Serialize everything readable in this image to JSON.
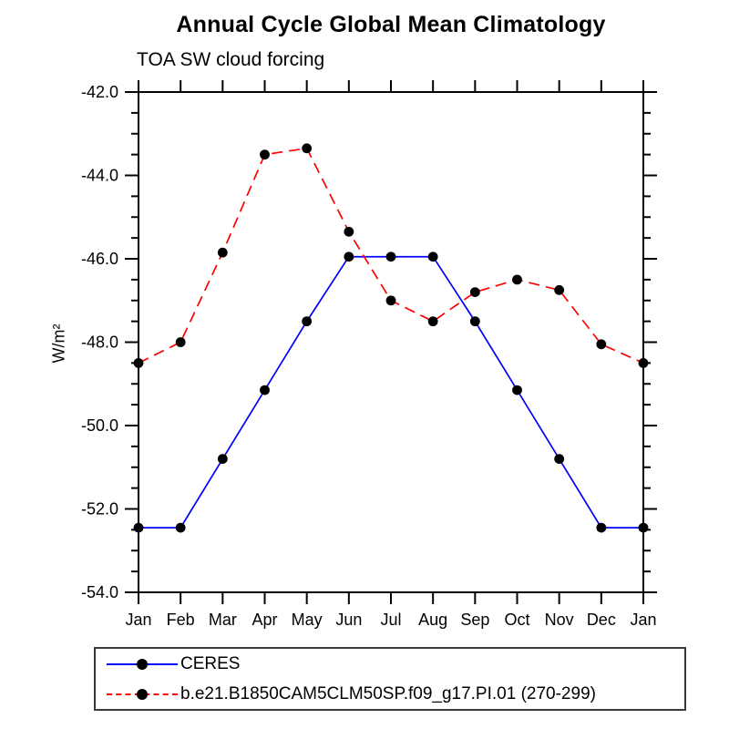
{
  "header": {
    "title": "Annual Cycle Global Mean Climatology",
    "subtitle": "TOA SW cloud forcing"
  },
  "axes": {
    "ylabel": "W/m²",
    "xlabel": ""
  },
  "legend": {
    "position": "bottom-left-box",
    "entries": [
      {
        "label": "CERES",
        "color": "#0000ff",
        "line": "solid",
        "marker": "black-dot"
      },
      {
        "label": "b.e21.B1850CAM5CLM50SP.f09_g17.PI.01 (270-299)",
        "color": "#ff0000",
        "line": "dashed",
        "marker": "black-dot"
      }
    ]
  },
  "chart_data": {
    "type": "line",
    "title": "Annual Cycle Global Mean Climatology",
    "subtitle": "TOA SW cloud forcing",
    "ylabel": "W/m²",
    "xlabel": "",
    "x": [
      "Jan",
      "Feb",
      "Mar",
      "Apr",
      "May",
      "Jun",
      "Jul",
      "Aug",
      "Sep",
      "Oct",
      "Nov",
      "Dec",
      "Jan"
    ],
    "series": [
      {
        "name": "CERES",
        "color": "#0000ff",
        "line": "solid",
        "dash": "",
        "marker": "black-dot",
        "values": [
          -52.45,
          -52.45,
          -50.8,
          -49.15,
          -47.5,
          -45.95,
          -45.95,
          -45.95,
          -47.5,
          -49.15,
          -50.8,
          -52.45,
          -52.45
        ]
      },
      {
        "name": "b.e21.B1850CAM5CLM50SP.f09_g17.PI.01 (270-299)",
        "color": "#ff0000",
        "line": "dashed",
        "dash": "12,7",
        "marker": "black-dot",
        "values": [
          -48.5,
          -48.0,
          -45.85,
          -43.5,
          -43.35,
          -45.35,
          -47.0,
          -47.5,
          -46.8,
          -46.5,
          -46.75,
          -48.05,
          -48.5
        ]
      }
    ],
    "ylim": [
      -54,
      -42
    ],
    "yticks_major": [
      -42,
      -44,
      -46,
      -48,
      -50,
      -52,
      -54
    ],
    "ytick_labels": [
      "-42.0",
      "-44.0",
      "-46.0",
      "-48.0",
      "-50.0",
      "-52.0",
      "-54.0"
    ],
    "ytick_minor_step": 0.5,
    "grid": false,
    "marker_color": "#000000",
    "frame_color": "#000000"
  }
}
